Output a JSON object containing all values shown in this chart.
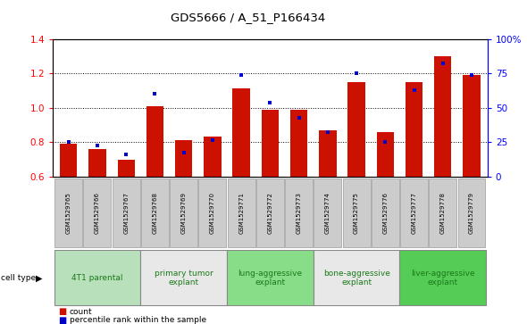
{
  "title": "GDS5666 / A_51_P166434",
  "samples": [
    "GSM1529765",
    "GSM1529766",
    "GSM1529767",
    "GSM1529768",
    "GSM1529769",
    "GSM1529770",
    "GSM1529771",
    "GSM1529772",
    "GSM1529773",
    "GSM1529774",
    "GSM1529775",
    "GSM1529776",
    "GSM1529777",
    "GSM1529778",
    "GSM1529779"
  ],
  "count_values": [
    0.79,
    0.76,
    0.7,
    1.01,
    0.81,
    0.83,
    1.11,
    0.99,
    0.99,
    0.87,
    1.15,
    0.86,
    1.15,
    1.3,
    1.19
  ],
  "percentile_values": [
    25.0,
    22.5,
    16.25,
    60.0,
    17.5,
    26.25,
    73.75,
    53.75,
    42.5,
    32.5,
    75.0,
    25.0,
    63.0,
    82.5,
    73.75
  ],
  "cell_types": [
    {
      "label": "4T1 parental",
      "start": 0,
      "end": 3,
      "color": "#b8e0bb"
    },
    {
      "label": "primary tumor\nexplant",
      "start": 3,
      "end": 6,
      "color": "#e8e8e8"
    },
    {
      "label": "lung-aggressive\nexplant",
      "start": 6,
      "end": 9,
      "color": "#88dd88"
    },
    {
      "label": "bone-aggressive\nexplant",
      "start": 9,
      "end": 12,
      "color": "#e8e8e8"
    },
    {
      "label": "liver-aggressive\nexplant",
      "start": 12,
      "end": 15,
      "color": "#55cc55"
    }
  ],
  "ylim_left": [
    0.6,
    1.4
  ],
  "yticks_left": [
    0.6,
    0.8,
    1.0,
    1.2,
    1.4
  ],
  "ylim_right": [
    0,
    100
  ],
  "yticks_right": [
    0,
    25,
    50,
    75,
    100
  ],
  "bar_color": "#cc1100",
  "dot_color": "#0000cc",
  "grid_lines": [
    0.8,
    1.0,
    1.2
  ],
  "count_label": "count",
  "percentile_label": "percentile rank within the sample",
  "cell_type_label": "cell type"
}
